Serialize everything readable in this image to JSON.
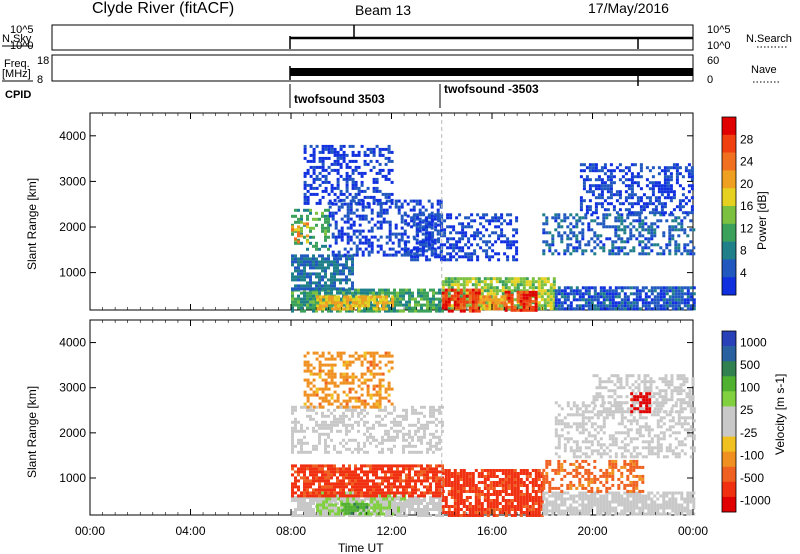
{
  "header": {
    "station": "Clyde River (fitACF)",
    "beam": "Beam 13",
    "date": "17/May/2016"
  },
  "noise_panel": {
    "left_label": "N.Sky",
    "right_label": "N.Search",
    "left_ticks": [
      "10^5",
      "10^0"
    ],
    "right_ticks": [
      "10^5",
      "10^0"
    ]
  },
  "freq_panel": {
    "left_label_1": "Freq.",
    "left_label_2": "[MHz]",
    "right_label": "Nave",
    "left_ticks": [
      "18",
      "8"
    ],
    "right_ticks": [
      "60",
      "0"
    ]
  },
  "cpid": {
    "label": "CPID",
    "entries": [
      {
        "name": "twofsound 3503",
        "start_hour": 8.0
      },
      {
        "name": "twofsound -3503",
        "start_hour": 14.0
      }
    ]
  },
  "chart_data": [
    {
      "type": "heatmap",
      "title": "Power",
      "xlabel": "Time UT",
      "ylabel": "Slant Range [km]",
      "xlim": [
        0,
        24
      ],
      "ylim": [
        180,
        4500
      ],
      "x_ticks": [
        "00:00",
        "04:00",
        "08:00",
        "12:00",
        "16:00",
        "20:00",
        "00:00"
      ],
      "y_ticks": [
        1000,
        2000,
        3000,
        4000
      ],
      "data_start_hour": 8.0,
      "colorbar": {
        "label": "Power [dB]",
        "ticks": [
          "4",
          "8",
          "12",
          "16",
          "20",
          "24",
          "28"
        ],
        "colors": [
          "#1030e0",
          "#2058c0",
          "#20808a",
          "#3aa05a",
          "#7cc040",
          "#e6d020",
          "#f0a020",
          "#f07020",
          "#f04010",
          "#e00000"
        ]
      },
      "bands": [
        {
          "t0": 8.0,
          "t1": 14.0,
          "r0": 180,
          "r1": 650,
          "v": 12
        },
        {
          "t0": 14.0,
          "t1": 18.5,
          "r0": 180,
          "r1": 900,
          "v": 16
        },
        {
          "t0": 18.5,
          "t1": 24.0,
          "r0": 200,
          "r1": 700,
          "v": 6
        },
        {
          "t0": 8.0,
          "t1": 10.5,
          "r0": 650,
          "r1": 1400,
          "v": 8
        },
        {
          "t0": 8.0,
          "t1": 9.5,
          "r0": 1500,
          "r1": 2400,
          "v": 12
        },
        {
          "t0": 9.5,
          "t1": 14.0,
          "r0": 1400,
          "r1": 2600,
          "v": 5
        },
        {
          "t0": 12.5,
          "t1": 17.0,
          "r0": 1300,
          "r1": 2300,
          "v": 5
        },
        {
          "t0": 18.0,
          "t1": 24.0,
          "r0": 1400,
          "r1": 2300,
          "v": 7
        },
        {
          "t0": 19.5,
          "t1": 24.0,
          "r0": 2300,
          "r1": 3400,
          "v": 5
        },
        {
          "t0": 8.5,
          "t1": 12.0,
          "r0": 2500,
          "r1": 3800,
          "v": 4
        }
      ],
      "hotspots": [
        {
          "t0": 14.0,
          "t1": 15.5,
          "r0": 180,
          "r1": 650,
          "v": 28
        },
        {
          "t0": 16.5,
          "t1": 17.7,
          "r0": 180,
          "r1": 600,
          "v": 28
        },
        {
          "t0": 9.0,
          "t1": 12.0,
          "r0": 200,
          "r1": 500,
          "v": 20
        },
        {
          "t0": 8.0,
          "t1": 8.6,
          "r0": 1700,
          "r1": 2100,
          "v": 22
        },
        {
          "t0": 15.5,
          "t1": 16.5,
          "r0": 220,
          "r1": 500,
          "v": 22
        }
      ]
    },
    {
      "type": "heatmap",
      "title": "Velocity",
      "xlabel": "Time UT",
      "ylabel": "Slant Range [km]",
      "xlim": [
        0,
        24
      ],
      "ylim": [
        180,
        4500
      ],
      "x_ticks": [
        "00:00",
        "04:00",
        "08:00",
        "12:00",
        "16:00",
        "20:00",
        "00:00"
      ],
      "y_ticks": [
        1000,
        2000,
        3000,
        4000
      ],
      "data_start_hour": 8.0,
      "colorbar": {
        "label": "Velocity [m s-1]",
        "ticks": [
          "1000",
          "500",
          "100",
          "25",
          "-25",
          "-100",
          "-500",
          "-1000"
        ],
        "colors": [
          "#2840b8",
          "#2860a0",
          "#308050",
          "#50b030",
          "#80d040",
          "#c8c8c8",
          "#c8c8c8",
          "#f0c020",
          "#f09020",
          "#f06020",
          "#f03010",
          "#e00000"
        ]
      },
      "bands": [
        {
          "t0": 8.0,
          "t1": 14.0,
          "r0": 180,
          "r1": 600,
          "v": 25
        },
        {
          "t0": 9.0,
          "t1": 12.5,
          "r0": 200,
          "r1": 700,
          "v": 60
        },
        {
          "t0": 8.0,
          "t1": 14.0,
          "r0": 600,
          "r1": 1300,
          "v": -300
        },
        {
          "t0": 14.0,
          "t1": 18.0,
          "r0": 180,
          "r1": 1200,
          "v": -300
        },
        {
          "t0": 18.0,
          "t1": 24.0,
          "r0": 200,
          "r1": 700,
          "v": 0
        },
        {
          "t0": 8.0,
          "t1": 14.0,
          "r0": 1600,
          "r1": 2600,
          "v": 0
        },
        {
          "t0": 18.5,
          "t1": 24.0,
          "r0": 1500,
          "r1": 2700,
          "v": 0
        },
        {
          "t0": 18.0,
          "t1": 22.0,
          "r0": 700,
          "r1": 1400,
          "v": -120
        },
        {
          "t0": 20.0,
          "t1": 24.0,
          "r0": 2500,
          "r1": 3300,
          "v": 0
        },
        {
          "t0": 8.5,
          "t1": 12.0,
          "r0": 2600,
          "r1": 3800,
          "v": -80
        }
      ],
      "hotspots": [
        {
          "t0": 21.5,
          "t1": 22.3,
          "r0": 2500,
          "r1": 2900,
          "v": -700
        },
        {
          "t0": 10.0,
          "t1": 11.0,
          "r0": 200,
          "r1": 450,
          "v": 200
        }
      ]
    }
  ]
}
